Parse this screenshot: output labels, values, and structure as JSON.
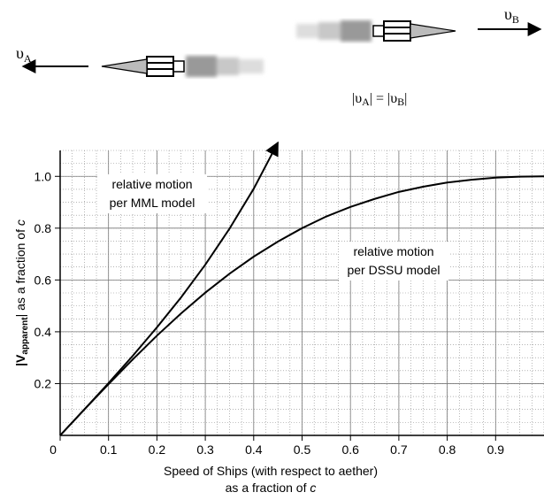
{
  "illustration": {
    "ship_a_label": [
      "υ",
      "A"
    ],
    "ship_b_label": [
      "υ",
      "B"
    ],
    "equation": [
      "|υ",
      "A",
      "| = |υ",
      "B",
      "|"
    ]
  },
  "chart_data": {
    "type": "line",
    "xlabel": [
      "Speed of Ships (with respect to aether)",
      "as a fraction of ",
      "c"
    ],
    "ylabel": [
      "|V",
      "apparent",
      "|  as a fraction of ",
      "c"
    ],
    "xlim": [
      0,
      1
    ],
    "ylim": [
      0,
      1.1
    ],
    "xticks": [
      0,
      0.1,
      0.2,
      0.3,
      0.4,
      0.5,
      0.6,
      0.7,
      0.8,
      0.9
    ],
    "yticks": [
      0.2,
      0.4,
      0.6,
      0.8,
      {
        "value": 1,
        "label": "1.0"
      }
    ],
    "grid": true,
    "series": [
      {
        "label": [
          "relative motion",
          "per MML model"
        ],
        "color": "#000000",
        "x": [
          0,
          0.05,
          0.1,
          0.15,
          0.2,
          0.25,
          0.3,
          0.35,
          0.4,
          0.45
        ],
        "values": [
          0,
          0.1,
          0.202,
          0.307,
          0.417,
          0.533,
          0.659,
          0.798,
          0.952,
          1.13
        ]
      },
      {
        "label": [
          "relative motion",
          "per DSSU model"
        ],
        "color": "#000000",
        "x": [
          0,
          0.05,
          0.1,
          0.15,
          0.2,
          0.25,
          0.3,
          0.35,
          0.4,
          0.45,
          0.5,
          0.55,
          0.6,
          0.65,
          0.7,
          0.75,
          0.8,
          0.85,
          0.9,
          0.95,
          1
        ],
        "values": [
          0,
          0.1,
          0.198,
          0.293,
          0.385,
          0.471,
          0.551,
          0.624,
          0.69,
          0.748,
          0.8,
          0.845,
          0.882,
          0.913,
          0.94,
          0.96,
          0.976,
          0.987,
          0.995,
          0.999,
          1
        ]
      }
    ]
  }
}
